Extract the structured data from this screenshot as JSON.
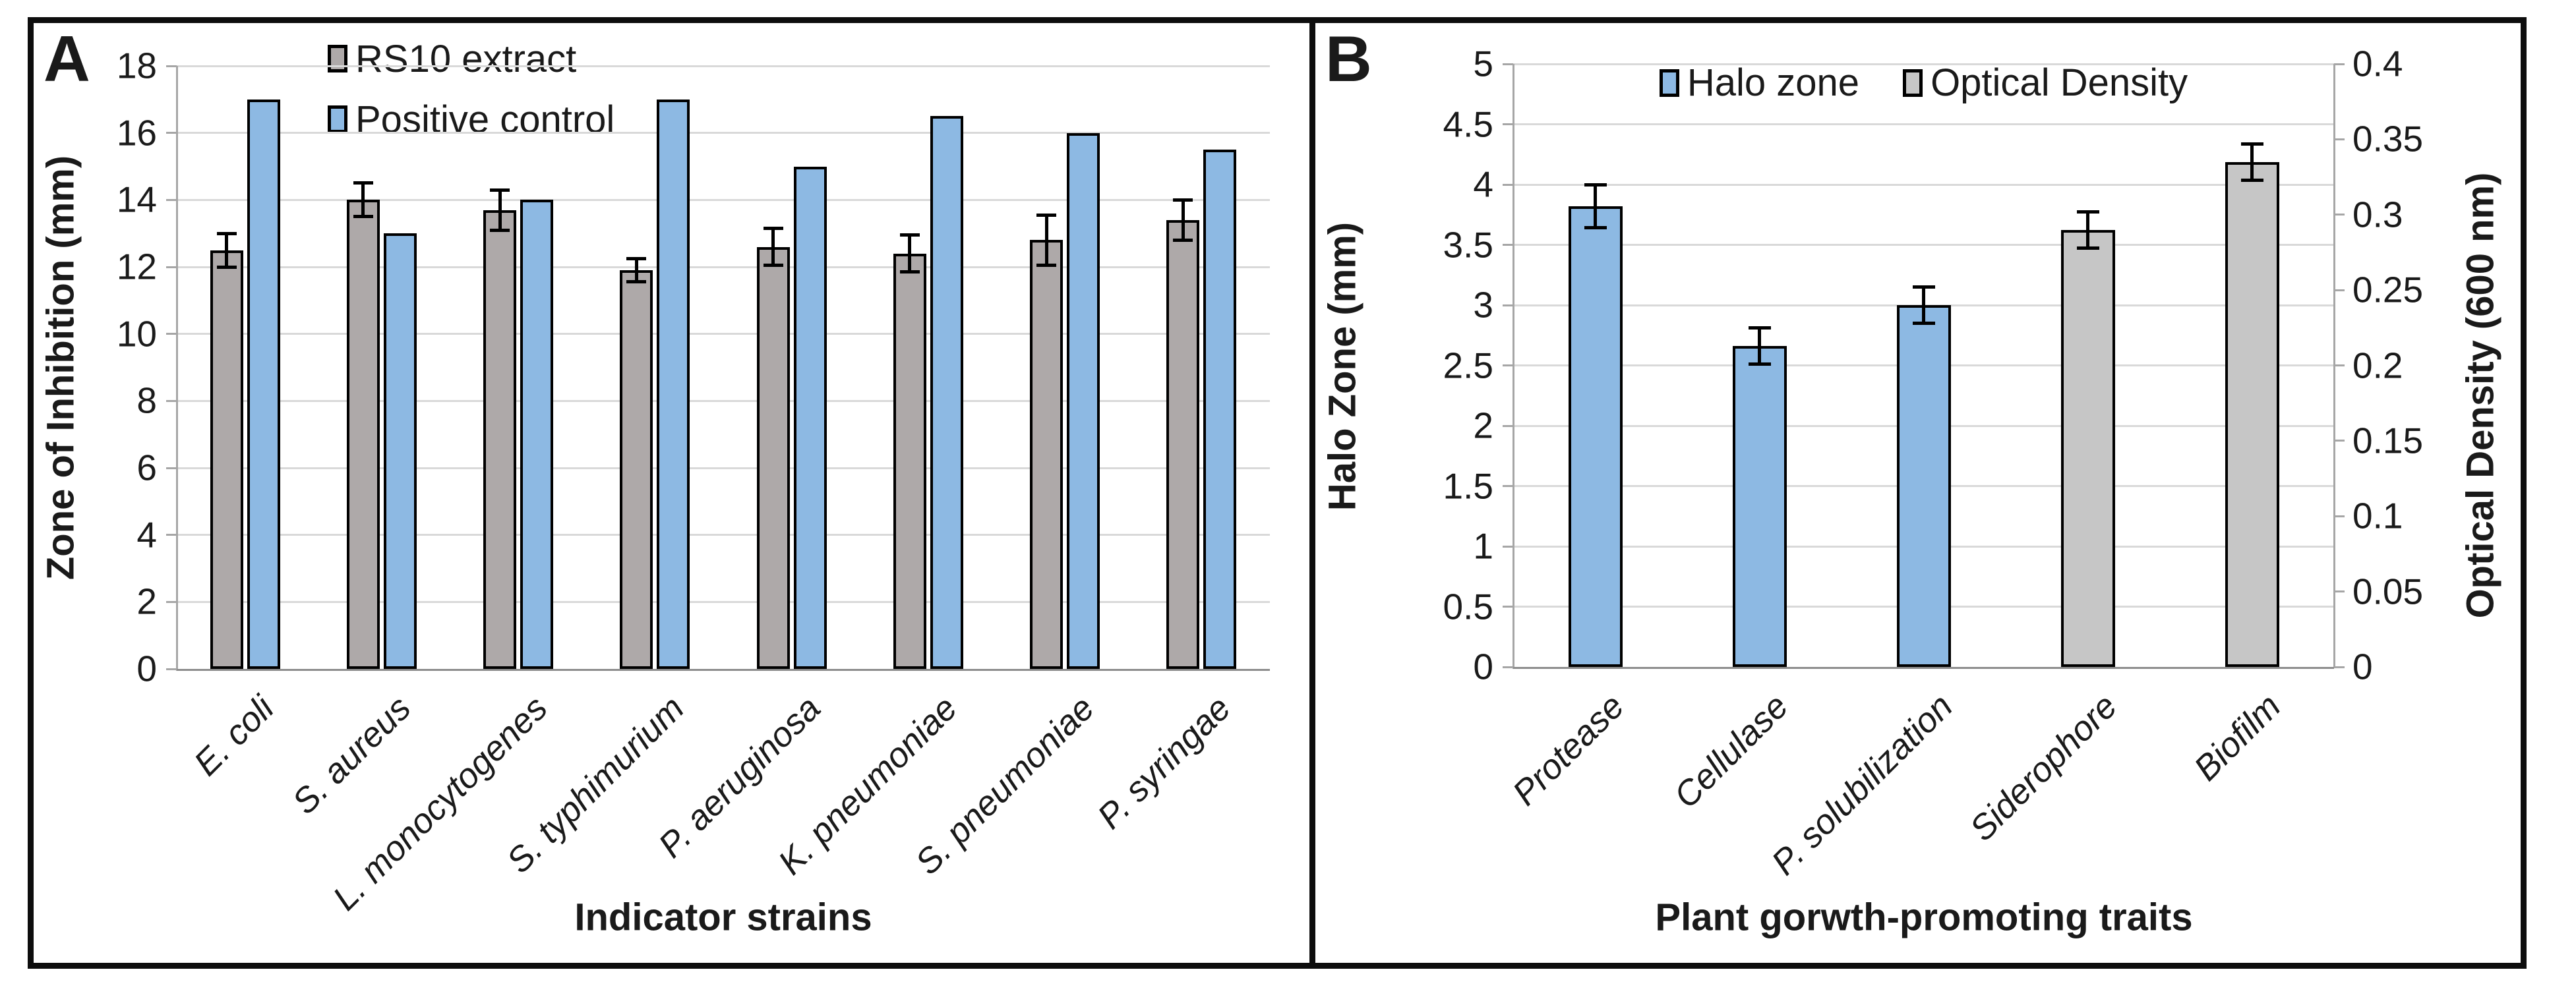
{
  "colors": {
    "blue": "#8db9e3",
    "gray_a": "#aea9a9",
    "gray_b": "#c6c6c6",
    "bar_outline": "#000000",
    "gridline": "#d9d9d9",
    "axis_line": "#a6a6a6",
    "figure_border": "#0d0d0d",
    "text": "#1a1a1a"
  },
  "chart_data": [
    {
      "type": "bar",
      "panel": "A",
      "xlabel": "Indicator strains",
      "ylabel": "Zone of Inhibition (mm)",
      "ylim": [
        0,
        18
      ],
      "yticks": [
        "0",
        "2",
        "4",
        "6",
        "8",
        "10",
        "12",
        "14",
        "16",
        "18"
      ],
      "grid": true,
      "legend_position": "top-center-stacked",
      "categories": [
        "E. coli",
        "S. aureus",
        "L. monocytogenes",
        "S. typhimurium",
        "P. aeruginosa",
        "K. pneumoniae",
        "S. pneumoniae",
        "P. syringae"
      ],
      "series": [
        {
          "name": "RS10 extract",
          "color_key": "gray_a",
          "values": [
            12.5,
            14,
            13.7,
            11.9,
            12.6,
            12.4,
            12.8,
            13.4
          ],
          "errors": [
            0.5,
            0.5,
            0.6,
            0.35,
            0.55,
            0.55,
            0.75,
            0.6
          ]
        },
        {
          "name": "Positive control",
          "color_key": "blue",
          "values": [
            17,
            13,
            14,
            17,
            15,
            16.5,
            16,
            15.5
          ],
          "errors": [
            0,
            0,
            0,
            0,
            0,
            0,
            0,
            0
          ]
        }
      ]
    },
    {
      "type": "bar",
      "panel": "B",
      "xlabel": "Plant gorwth-promoting traits",
      "ylabel_left": "Halo Zone (mm)",
      "ylabel_right": "Optical Density (600 nm)",
      "ylim_left": [
        0,
        5
      ],
      "ylim_right": [
        0,
        0.4
      ],
      "yticks_left": [
        "0",
        "0.5",
        "1",
        "1.5",
        "2",
        "2.5",
        "3",
        "3.5",
        "4",
        "4.5",
        "5"
      ],
      "yticks_right": [
        "0",
        "0.05",
        "0.1",
        "0.15",
        "0.2",
        "0.25",
        "0.3",
        "0.35",
        "0.4"
      ],
      "grid": true,
      "legend_position": "top-center-horizontal",
      "categories": [
        "Protease",
        "Cellulase",
        "P. solubilization",
        "Siderophore",
        "Biofilm"
      ],
      "series": [
        {
          "name": "Halo zone",
          "color_key": "blue",
          "axis": "left",
          "values": [
            3.82,
            2.66,
            3.0,
            null,
            null
          ],
          "errors": [
            0.18,
            0.15,
            0.15,
            null,
            null
          ]
        },
        {
          "name": "Optical Density",
          "color_key": "gray_b",
          "axis": "right",
          "values": [
            null,
            null,
            null,
            0.29,
            0.335
          ],
          "errors": [
            null,
            null,
            null,
            0.012,
            0.012
          ]
        }
      ]
    }
  ]
}
